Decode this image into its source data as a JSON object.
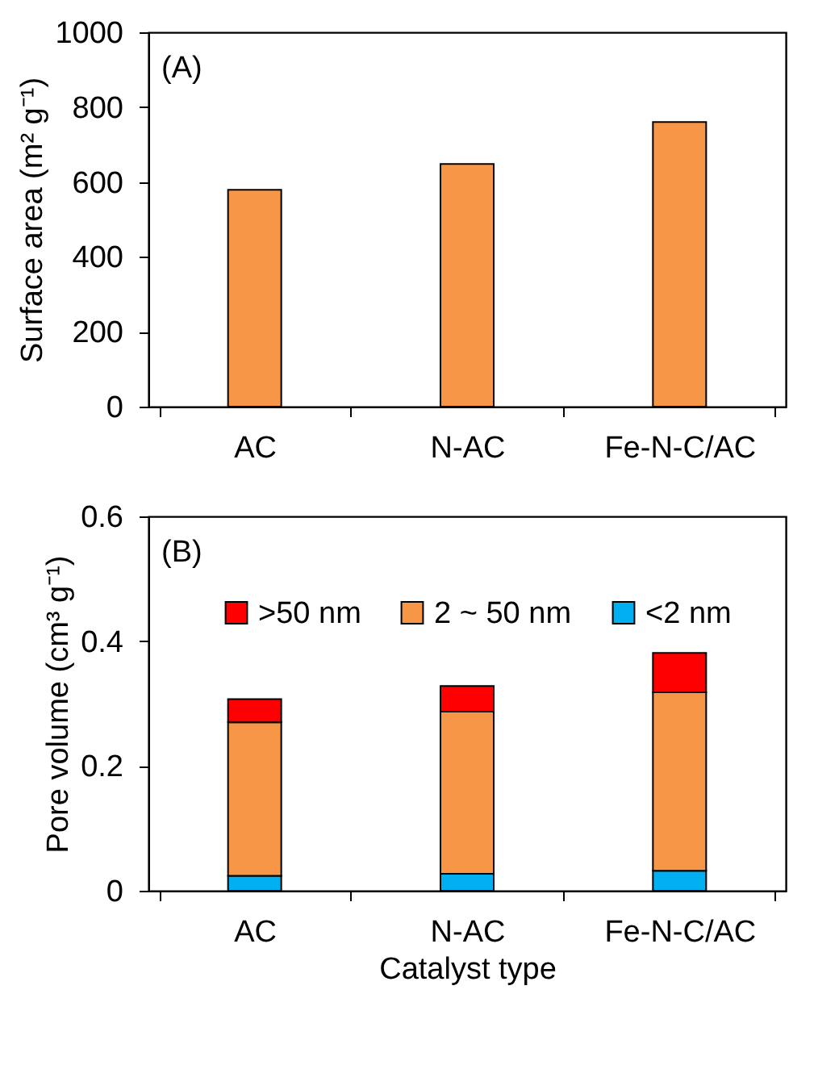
{
  "chart_data": [
    {
      "type": "bar",
      "categories": [
        "AC",
        "N-AC",
        "Fe-N-C/AC"
      ],
      "ylabel": "Surface area (m² g⁻¹)",
      "values": [
        579,
        648,
        760
      ],
      "color": "#f79646",
      "ylim": [
        0,
        1000
      ],
      "yticks": [
        0,
        200,
        400,
        600,
        800,
        1000
      ],
      "annotations": [
        "(A)"
      ],
      "grid": false
    },
    {
      "type": "bar",
      "stacked": true,
      "categories": [
        "AC",
        "N-AC",
        "Fe-N-C/AC"
      ],
      "xlabel": "Catalyst type",
      "ylabel": "Pore volume (cm³ g⁻¹)",
      "ylim": [
        0,
        0.6
      ],
      "yticks": [
        0,
        0.2,
        0.4,
        0.6
      ],
      "annotations": [
        "(B)"
      ],
      "grid": false,
      "legend": "top",
      "series": [
        {
          "name": "<2 nm",
          "color": "#00b0f0",
          "values": [
            0.024,
            0.027,
            0.032
          ]
        },
        {
          "name": "2 ~ 50 nm",
          "color": "#f79646",
          "values": [
            0.246,
            0.26,
            0.286
          ]
        },
        {
          "name": ">50 nm",
          "color": "#ff0000",
          "values": [
            0.037,
            0.041,
            0.063
          ]
        }
      ]
    }
  ]
}
